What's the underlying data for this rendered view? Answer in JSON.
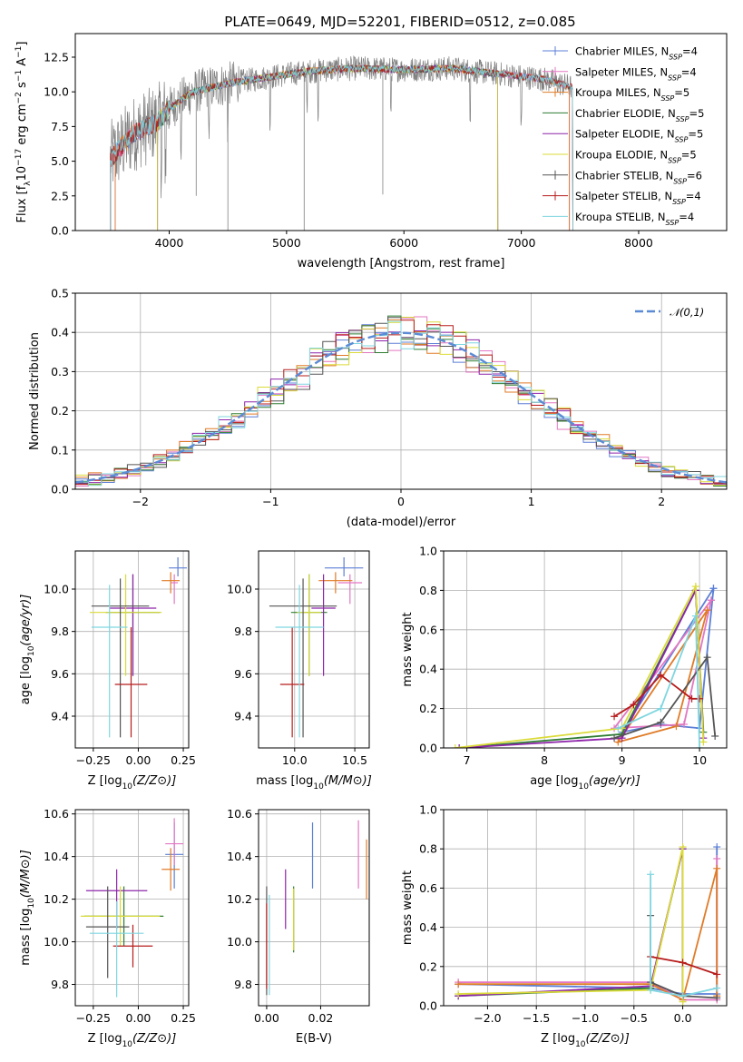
{
  "title": "PLATE=0649, MJD=52201, FIBERID=0512, z=0.085",
  "colors": {
    "Chabrier MILES": "#5b7fd6",
    "Salpeter MILES": "#e377c2",
    "Kroupa MILES": "#e07b27",
    "Chabrier ELODIE": "#2e7d32",
    "Salpeter ELODIE": "#8e24aa",
    "Kroupa ELODIE": "#dbdb3a",
    "Chabrier STELIB": "#555555",
    "Salpeter STELIB": "#b71c1c",
    "Kroupa STELIB": "#7fd6e0",
    "data": "#808080",
    "gaussian": "#5b8bd6"
  },
  "chart_data": [
    {
      "type": "line",
      "xlabel": "wavelength [Angstrom, rest frame]",
      "ylabel": "Flux [f_λ 10^-17 erg cm^-2 s^-1 A^-1]",
      "xlim": [
        3200,
        8750
      ],
      "ylim": [
        0,
        14.2
      ],
      "xticks": [
        4000,
        5000,
        6000,
        7000,
        8000
      ],
      "yticks": [
        0.0,
        2.5,
        5.0,
        7.5,
        10.0,
        12.5
      ],
      "ytick_labels": [
        "0.0",
        "2.5",
        "5.0",
        "7.5",
        "10.0",
        "12.5"
      ],
      "legend_loc": "right",
      "legend": [
        {
          "name": "Chabrier MILES",
          "base": "Chabrier MILES, N",
          "sub": "SSP",
          "tail": "=4"
        },
        {
          "name": "Salpeter MILES",
          "base": "Salpeter MILES, N",
          "sub": "SSP",
          "tail": "=4"
        },
        {
          "name": "Kroupa MILES",
          "base": "Kroupa MILES, N",
          "sub": "SSP",
          "tail": "=5"
        },
        {
          "name": "Chabrier ELODIE",
          "base": "Chabrier ELODIE, N",
          "sub": "SSP",
          "tail": "=5"
        },
        {
          "name": "Salpeter ELODIE",
          "base": "Salpeter ELODIE, N",
          "sub": "SSP",
          "tail": "=5"
        },
        {
          "name": "Kroupa ELODIE",
          "base": "Kroupa ELODIE, N",
          "sub": "SSP",
          "tail": "=5"
        },
        {
          "name": "Chabrier STELIB",
          "base": "Chabrier STELIB, N",
          "sub": "SSP",
          "tail": "=6"
        },
        {
          "name": "Salpeter STELIB",
          "base": "Salpeter STELIB, N",
          "sub": "SSP",
          "tail": "=4"
        },
        {
          "name": "Kroupa STELIB",
          "base": "Kroupa STELIB, N",
          "sub": "SSP",
          "tail": "=4"
        }
      ],
      "continuum": [
        [
          3500,
          5.2
        ],
        [
          3700,
          7.0
        ],
        [
          3900,
          7.8
        ],
        [
          4000,
          8.8
        ],
        [
          4200,
          10.0
        ],
        [
          4500,
          10.6
        ],
        [
          4800,
          11.0
        ],
        [
          5200,
          11.5
        ],
        [
          5600,
          11.7
        ],
        [
          6000,
          11.6
        ],
        [
          6400,
          11.7
        ],
        [
          6800,
          11.3
        ],
        [
          7200,
          10.9
        ],
        [
          7450,
          10.3
        ]
      ],
      "data_range": [
        3500,
        7430
      ],
      "model_ranges": {
        "MILES": [
          3540,
          7410
        ],
        "ELODIE": [
          3900,
          6800
        ],
        "STELIB": [
          3500,
          8750
        ]
      },
      "absorption_lines": [
        3934,
        3969,
        4102,
        4340,
        4500,
        4861,
        5175,
        5270,
        5890,
        6563,
        7000
      ]
    },
    {
      "type": "step",
      "xlabel": "(data-model)/error",
      "ylabel": "Normed distribution",
      "xlim": [
        -2.5,
        2.5
      ],
      "ylim": [
        0,
        0.5
      ],
      "xticks": [
        -2,
        -1,
        0,
        1,
        2
      ],
      "xtick_labels": [
        "−2",
        "−1",
        "0",
        "1",
        "2"
      ],
      "yticks": [
        0.0,
        0.1,
        0.2,
        0.3,
        0.4,
        0.5
      ],
      "ytick_labels": [
        "0.0",
        "0.1",
        "0.2",
        "0.3",
        "0.4",
        "0.5"
      ],
      "legend": "𝒩(0,1)",
      "gaussian": {
        "mean": 0,
        "sigma": 1
      },
      "bin_width": 0.1
    },
    {
      "type": "errorbar",
      "xlabel": "Z [log10(Z/Z⊙)]",
      "ylabel": "age [log10(age/yr)]",
      "xlim": [
        -0.35,
        0.28
      ],
      "ylim": [
        9.25,
        10.18
      ],
      "xticks": [
        -0.25,
        0.0,
        0.25
      ],
      "xtick_labels": [
        "−0.25",
        "0.00",
        "0.25"
      ],
      "yticks": [
        9.4,
        9.6,
        9.8,
        10.0
      ],
      "ytick_labels": [
        "9.4",
        "9.6",
        "9.8",
        "10.0"
      ],
      "points": [
        {
          "series": "Chabrier MILES",
          "x": 0.22,
          "y": 10.1,
          "xerr": 0.05,
          "yerr": [
            0.04,
            0.05
          ]
        },
        {
          "series": "Salpeter MILES",
          "x": 0.2,
          "y": 10.03,
          "xerr": 0.02,
          "yerr": [
            0.1,
            0.04
          ]
        },
        {
          "series": "Kroupa MILES",
          "x": 0.18,
          "y": 10.04,
          "xerr": 0.05,
          "yerr": [
            0.06,
            0.04
          ]
        },
        {
          "series": "Chabrier ELODIE",
          "x": -0.03,
          "y": 9.89,
          "xerr": 0.15,
          "yerr": [
            0.3,
            0.18
          ]
        },
        {
          "series": "Salpeter ELODIE",
          "x": -0.03,
          "y": 9.91,
          "xerr": 0.13,
          "yerr": [
            0.32,
            0.16
          ]
        },
        {
          "series": "Kroupa ELODIE",
          "x": -0.07,
          "y": 9.89,
          "xerr": 0.2,
          "yerr": [
            0.3,
            0.18
          ]
        },
        {
          "series": "Chabrier STELIB",
          "x": -0.1,
          "y": 9.92,
          "xerr": 0.16,
          "yerr": [
            0.62,
            0.13
          ]
        },
        {
          "series": "Salpeter STELIB",
          "x": -0.04,
          "y": 9.55,
          "xerr": 0.09,
          "yerr": [
            0.25,
            0.27
          ]
        },
        {
          "series": "Kroupa STELIB",
          "x": -0.16,
          "y": 9.82,
          "xerr": 0.1,
          "yerr": [
            0.52,
            0.2
          ]
        }
      ]
    },
    {
      "type": "errorbar",
      "xlabel": "mass [log10(M/M⊙)]",
      "ylabel": "",
      "xlim": [
        9.7,
        10.62
      ],
      "ylim": [
        9.25,
        10.18
      ],
      "xticks": [
        10.0,
        10.5
      ],
      "xtick_labels": [
        "10.0",
        "10.5"
      ],
      "yticks": [
        9.4,
        9.6,
        9.8,
        10.0
      ],
      "ytick_labels": [
        "9.4",
        "9.6",
        "9.8",
        "10.0"
      ],
      "points": [
        {
          "series": "Chabrier MILES",
          "x": 10.41,
          "y": 10.1,
          "xerr": 0.16,
          "yerr": [
            0.04,
            0.05
          ]
        },
        {
          "series": "Salpeter MILES",
          "x": 10.46,
          "y": 10.03,
          "xerr": 0.1,
          "yerr": [
            0.1,
            0.04
          ]
        },
        {
          "series": "Kroupa MILES",
          "x": 10.34,
          "y": 10.04,
          "xerr": 0.14,
          "yerr": [
            0.06,
            0.04
          ]
        },
        {
          "series": "Chabrier ELODIE",
          "x": 10.12,
          "y": 9.89,
          "xerr": 0.15,
          "yerr": [
            0.3,
            0.18
          ]
        },
        {
          "series": "Salpeter ELODIE",
          "x": 10.24,
          "y": 9.91,
          "xerr": 0.1,
          "yerr": [
            0.32,
            0.16
          ]
        },
        {
          "series": "Kroupa ELODIE",
          "x": 10.12,
          "y": 9.89,
          "xerr": 0.1,
          "yerr": [
            0.3,
            0.18
          ]
        },
        {
          "series": "Chabrier STELIB",
          "x": 10.07,
          "y": 9.92,
          "xerr": 0.28,
          "yerr": [
            0.62,
            0.13
          ]
        },
        {
          "series": "Salpeter STELIB",
          "x": 9.98,
          "y": 9.55,
          "xerr": 0.1,
          "yerr": [
            0.25,
            0.27
          ]
        },
        {
          "series": "Kroupa STELIB",
          "x": 10.04,
          "y": 9.82,
          "xerr": 0.2,
          "yerr": [
            0.52,
            0.2
          ]
        }
      ]
    },
    {
      "type": "line",
      "xlabel": "age [log10(age/yr)]",
      "ylabel": "mass weight",
      "xlim": [
        6.7,
        10.35
      ],
      "ylim": [
        0,
        1.0
      ],
      "xticks": [
        7,
        8,
        9,
        10
      ],
      "xtick_labels": [
        "7",
        "8",
        "9",
        "10"
      ],
      "yticks": [
        0.0,
        0.2,
        0.4,
        0.6,
        0.8,
        1.0
      ],
      "ytick_labels": [
        "0.0",
        "0.2",
        "0.4",
        "0.6",
        "0.8",
        "1.0"
      ],
      "series": [
        {
          "name": "Chabrier MILES",
          "x": [
            10.18,
            9.0,
            9.5,
            10.0,
            10.18
          ],
          "y": [
            0.81,
            0.08,
            0.12,
            0.1,
            0.81
          ]
        },
        {
          "name": "Salpeter MILES",
          "x": [
            10.15,
            8.9,
            9.8,
            10.15
          ],
          "y": [
            0.75,
            0.1,
            0.12,
            0.75
          ]
        },
        {
          "name": "Kroupa MILES",
          "x": [
            10.1,
            8.95,
            9.7,
            10.1
          ],
          "y": [
            0.7,
            0.03,
            0.11,
            0.7
          ]
        },
        {
          "name": "Chabrier ELODIE",
          "x": [
            6.9,
            9.0,
            9.95,
            10.05
          ],
          "y": [
            0.0,
            0.07,
            0.8,
            0.08
          ]
        },
        {
          "name": "Salpeter ELODIE",
          "x": [
            6.9,
            9.0,
            9.95,
            10.05
          ],
          "y": [
            0.0,
            0.05,
            0.8,
            0.05
          ]
        },
        {
          "name": "Kroupa ELODIE",
          "x": [
            6.85,
            9.0,
            9.95,
            10.05
          ],
          "y": [
            0.0,
            0.1,
            0.82,
            0.03
          ]
        },
        {
          "name": "Chabrier STELIB",
          "x": [
            8.9,
            9.5,
            10.1,
            10.2
          ],
          "y": [
            0.05,
            0.13,
            0.46,
            0.06
          ]
        },
        {
          "name": "Salpeter STELIB",
          "x": [
            8.9,
            9.15,
            9.5,
            9.9,
            10.0
          ],
          "y": [
            0.16,
            0.22,
            0.37,
            0.25,
            0.25
          ]
        },
        {
          "name": "Kroupa STELIB",
          "x": [
            8.95,
            9.5,
            9.95,
            10.0
          ],
          "y": [
            0.1,
            0.2,
            0.67,
            0.0
          ]
        }
      ]
    },
    {
      "type": "errorbar",
      "xlabel": "Z [log10(Z/Z⊙)]",
      "ylabel": "mass [log10(M/M⊙)]",
      "xlim": [
        -0.35,
        0.28
      ],
      "ylim": [
        9.7,
        10.62
      ],
      "xticks": [
        -0.25,
        0.0,
        0.25
      ],
      "xtick_labels": [
        "−0.25",
        "0.00",
        "0.25"
      ],
      "yticks": [
        9.8,
        10.0,
        10.2,
        10.4,
        10.6
      ],
      "ytick_labels": [
        "9.8",
        "10.0",
        "10.2",
        "10.4",
        "10.6"
      ],
      "points": [
        {
          "series": "Chabrier MILES",
          "x": 0.2,
          "y": 10.41,
          "xerr": 0.05,
          "yerr": [
            0.16,
            0.15
          ]
        },
        {
          "series": "Salpeter MILES",
          "x": 0.2,
          "y": 10.46,
          "xerr": 0.05,
          "yerr": [
            0.1,
            0.12
          ]
        },
        {
          "series": "Kroupa MILES",
          "x": 0.18,
          "y": 10.34,
          "xerr": 0.05,
          "yerr": [
            0.1,
            0.1
          ]
        },
        {
          "series": "Chabrier ELODIE",
          "x": -0.08,
          "y": 10.12,
          "xerr": 0.22,
          "yerr": [
            0.14,
            0.14
          ]
        },
        {
          "series": "Salpeter ELODIE",
          "x": -0.12,
          "y": 10.24,
          "xerr": 0.17,
          "yerr": [
            0.18,
            0.1
          ]
        },
        {
          "series": "Kroupa ELODIE",
          "x": -0.1,
          "y": 10.12,
          "xerr": 0.22,
          "yerr": [
            0.14,
            0.14
          ]
        },
        {
          "series": "Chabrier STELIB",
          "x": -0.17,
          "y": 10.07,
          "xerr": 0.12,
          "yerr": [
            0.24,
            0.19
          ]
        },
        {
          "series": "Salpeter STELIB",
          "x": -0.03,
          "y": 9.98,
          "xerr": 0.11,
          "yerr": [
            0.1,
            0.1
          ]
        },
        {
          "series": "Kroupa STELIB",
          "x": -0.12,
          "y": 10.04,
          "xerr": 0.15,
          "yerr": [
            0.3,
            0.15
          ]
        }
      ]
    },
    {
      "type": "errorbar",
      "xlabel": "E(B-V)",
      "ylabel": "",
      "xlim": [
        -0.003,
        0.038
      ],
      "ylim": [
        9.7,
        10.62
      ],
      "xticks": [
        0.0,
        0.02
      ],
      "xtick_labels": [
        "0.00",
        "0.02"
      ],
      "yticks": [
        9.8,
        10.0,
        10.2,
        10.4,
        10.6
      ],
      "ytick_labels": [
        "9.8",
        "10.0",
        "10.2",
        "10.4",
        "10.6"
      ],
      "points": [
        {
          "series": "Chabrier MILES",
          "x": 0.017,
          "y": 10.41,
          "xerr": 0,
          "yerr": [
            0.16,
            0.15
          ]
        },
        {
          "series": "Salpeter MILES",
          "x": 0.034,
          "y": 10.41,
          "xerr": 0,
          "yerr": [
            0.16,
            0.16
          ]
        },
        {
          "series": "Kroupa MILES",
          "x": 0.037,
          "y": 10.34,
          "xerr": 0,
          "yerr": [
            0.14,
            0.14
          ]
        },
        {
          "series": "Chabrier ELODIE",
          "x": 0.01,
          "y": 10.1,
          "xerr": 0,
          "yerr": [
            0.15,
            0.16
          ]
        },
        {
          "series": "Salpeter ELODIE",
          "x": 0.007,
          "y": 10.2,
          "xerr": 0,
          "yerr": [
            0.14,
            0.14
          ]
        },
        {
          "series": "Kroupa ELODIE",
          "x": 0.01,
          "y": 10.11,
          "xerr": 0,
          "yerr": [
            0.15,
            0.14
          ]
        },
        {
          "series": "Chabrier STELIB",
          "x": 0.0,
          "y": 10.03,
          "xerr": 0,
          "yerr": [
            0.28,
            0.23
          ]
        },
        {
          "series": "Salpeter STELIB",
          "x": 0.0,
          "y": 9.98,
          "xerr": 0,
          "yerr": [
            0.2,
            0.2
          ]
        },
        {
          "series": "Kroupa STELIB",
          "x": 0.001,
          "y": 10.0,
          "xerr": 0,
          "yerr": [
            0.25,
            0.22
          ]
        }
      ]
    },
    {
      "type": "line",
      "xlabel": "Z [log10(Z/Z⊙)]",
      "ylabel": "mass weight",
      "xlim": [
        -2.45,
        0.45
      ],
      "ylim": [
        0,
        1.0
      ],
      "xticks": [
        -2.0,
        -1.5,
        -1.0,
        -0.5,
        0.0
      ],
      "xtick_labels": [
        "−2.0",
        "−1.5",
        "−1.0",
        "−0.5",
        "0.0"
      ],
      "yticks": [
        0.0,
        0.2,
        0.4,
        0.6,
        0.8,
        1.0
      ],
      "ytick_labels": [
        "0.0",
        "0.2",
        "0.4",
        "0.6",
        "0.8",
        "1.0"
      ],
      "series": [
        {
          "name": "Chabrier MILES",
          "x": [
            -2.3,
            -0.33,
            0.0,
            0.35,
            0.35
          ],
          "y": [
            0.11,
            0.09,
            0.06,
            0.06,
            0.81
          ]
        },
        {
          "name": "Salpeter MILES",
          "x": [
            -2.3,
            -0.33,
            0.0,
            0.35,
            0.35
          ],
          "y": [
            0.12,
            0.12,
            0.03,
            0.03,
            0.75
          ]
        },
        {
          "name": "Kroupa MILES",
          "x": [
            -2.3,
            -0.33,
            0.0,
            0.35,
            0.35
          ],
          "y": [
            0.11,
            0.11,
            0.03,
            0.7,
            0.05
          ]
        },
        {
          "name": "Chabrier ELODIE",
          "x": [
            -2.3,
            -0.33,
            0.0,
            0.0
          ],
          "y": [
            0.05,
            0.09,
            0.8,
            0.05
          ]
        },
        {
          "name": "Salpeter ELODIE",
          "x": [
            -2.3,
            -0.33,
            0.0,
            0.0
          ],
          "y": [
            0.05,
            0.1,
            0.8,
            0.05
          ]
        },
        {
          "name": "Kroupa ELODIE",
          "x": [
            -2.3,
            -0.33,
            0.0,
            0.0
          ],
          "y": [
            0.06,
            0.08,
            0.81,
            0.02
          ]
        },
        {
          "name": "Chabrier STELIB",
          "x": [
            -0.33,
            -0.33,
            0.0,
            0.35
          ],
          "y": [
            0.46,
            0.12,
            0.05,
            0.04
          ]
        },
        {
          "name": "Salpeter STELIB",
          "x": [
            -0.33,
            0.0,
            0.35
          ],
          "y": [
            0.25,
            0.22,
            0.16
          ]
        },
        {
          "name": "Kroupa STELIB",
          "x": [
            -0.33,
            -0.33,
            0.0,
            0.35
          ],
          "y": [
            0.67,
            0.08,
            0.05,
            0.09
          ]
        }
      ]
    }
  ]
}
